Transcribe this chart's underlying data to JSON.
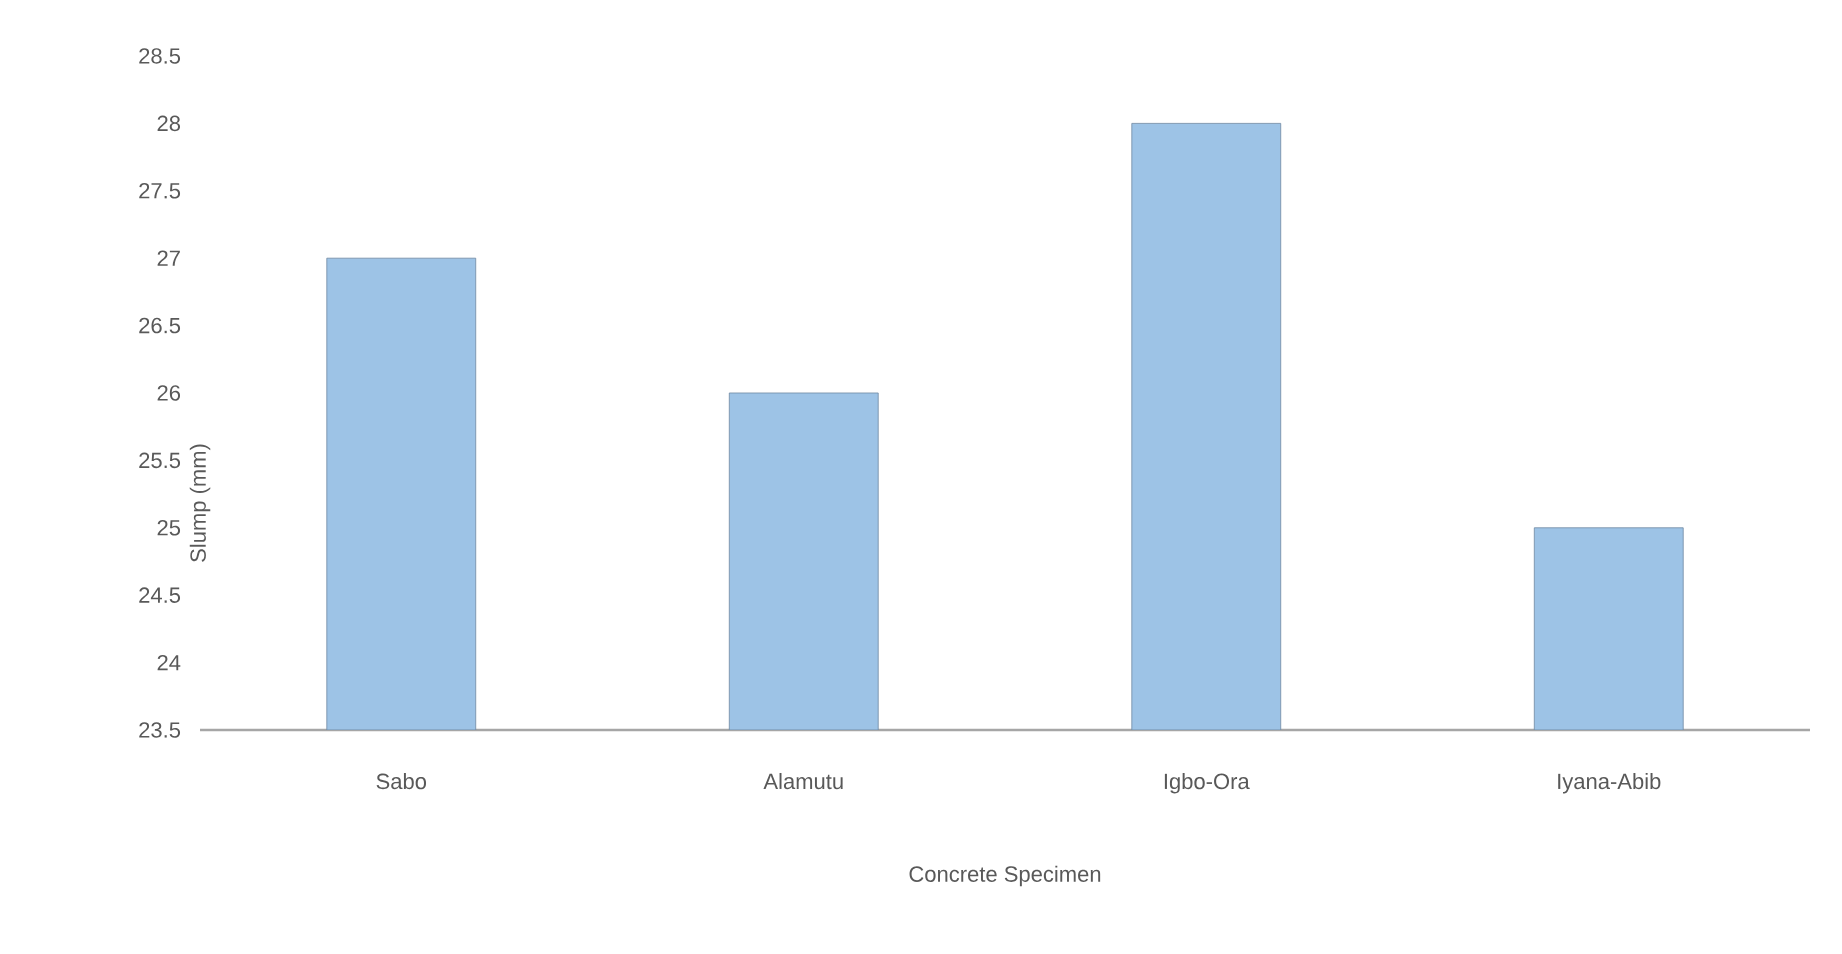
{
  "chart_data": {
    "type": "bar",
    "xlabel": "Concrete Specimen",
    "ylabel": "Slump (mm)",
    "categories": [
      "Sabo",
      "Alamutu",
      "Igbo-Ora",
      "Iyana-Abib"
    ],
    "values": [
      27,
      26,
      28,
      25
    ],
    "color": "#9dc3e6",
    "ylim": [
      23.5,
      28.5
    ],
    "yticks": [
      23.5,
      24,
      24.5,
      25,
      25.5,
      26,
      26.5,
      27,
      27.5,
      28,
      28.5
    ]
  }
}
